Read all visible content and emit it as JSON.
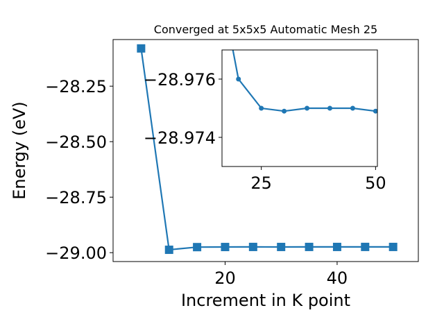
{
  "chart_data": [
    {
      "type": "line",
      "title": "Converged at 5x5x5 Automatic Mesh 25",
      "xlabel": "Increment in K point",
      "ylabel": "Energy (eV)",
      "x": [
        5,
        10,
        15,
        20,
        25,
        30,
        35,
        40,
        45,
        50
      ],
      "series": [
        {
          "values": [
            -28.08,
            -28.987,
            -28.975,
            -28.9745,
            -28.9742,
            -28.9743,
            -28.9742,
            -28.9742,
            -28.9741,
            -28.9742
          ]
        }
      ],
      "xlim": [
        0,
        54.5
      ],
      "ylim": [
        -29.04,
        -28.04
      ],
      "xticks": [
        20,
        40
      ],
      "xtick_labels": [
        "20",
        "40"
      ],
      "yticks": [
        -28.25,
        -28.5,
        -28.75,
        -29.0
      ],
      "ytick_labels": [
        "−28.25",
        "−28.50",
        "−28.75",
        "−29.00"
      ],
      "marker": "square",
      "color": "#1f77b4",
      "grid": false
    },
    {
      "type": "line",
      "title": "",
      "xlabel": "",
      "ylabel": "",
      "x": [
        20,
        25,
        30,
        35,
        40,
        45,
        50
      ],
      "series": [
        {
          "values": [
            -28.976,
            -28.975,
            -28.9749,
            -28.975,
            -28.975,
            -28.975,
            -28.9749
          ]
        }
      ],
      "extra_point_note": "",
      "line_start": {
        "x": 18.3,
        "y": -28.9774
      },
      "xlim": [
        16.4,
        50.4
      ],
      "ylim": [
        -28.973,
        -28.977
      ],
      "xticks": [
        25,
        50
      ],
      "xtick_labels": [
        "25",
        "50"
      ],
      "yticks": [
        -28.976,
        -28.974
      ],
      "ytick_labels": [
        "−28.976",
        "−28.974"
      ],
      "marker": "circle",
      "color": "#1f77b4",
      "grid": false
    }
  ]
}
